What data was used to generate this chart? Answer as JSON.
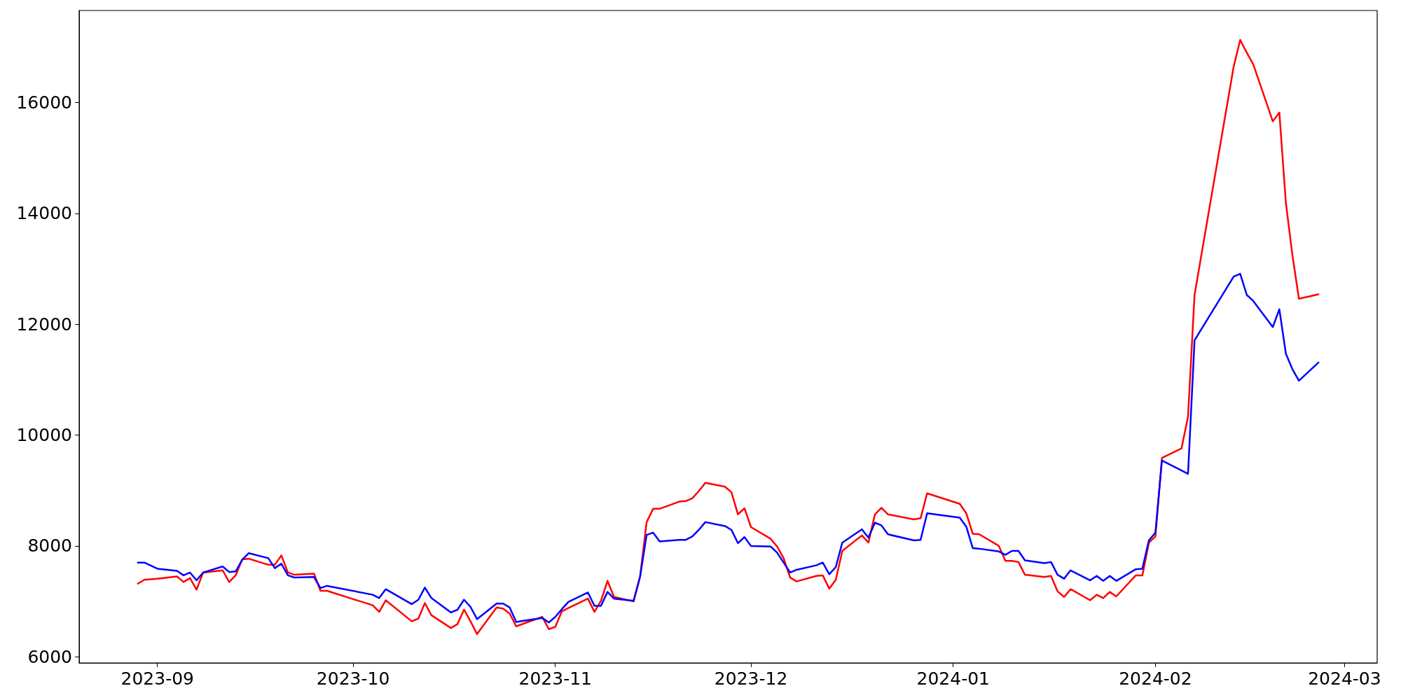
{
  "chart_data": {
    "type": "line",
    "x": [
      "2023-08-29",
      "2023-08-30",
      "2023-09-01",
      "2023-09-04",
      "2023-09-05",
      "2023-09-06",
      "2023-09-07",
      "2023-09-08",
      "2023-09-11",
      "2023-09-12",
      "2023-09-13",
      "2023-09-14",
      "2023-09-15",
      "2023-09-18",
      "2023-09-19",
      "2023-09-20",
      "2023-09-21",
      "2023-09-22",
      "2023-09-25",
      "2023-09-26",
      "2023-09-27",
      "2023-10-04",
      "2023-10-05",
      "2023-10-06",
      "2023-10-10",
      "2023-10-11",
      "2023-10-12",
      "2023-10-13",
      "2023-10-16",
      "2023-10-17",
      "2023-10-18",
      "2023-10-19",
      "2023-10-20",
      "2023-10-23",
      "2023-10-24",
      "2023-10-25",
      "2023-10-26",
      "2023-10-30",
      "2023-10-31",
      "2023-11-01",
      "2023-11-02",
      "2023-11-03",
      "2023-11-06",
      "2023-11-07",
      "2023-11-08",
      "2023-11-09",
      "2023-11-10",
      "2023-11-13",
      "2023-11-14",
      "2023-11-15",
      "2023-11-16",
      "2023-11-17",
      "2023-11-20",
      "2023-11-21",
      "2023-11-22",
      "2023-11-23",
      "2023-11-24",
      "2023-11-27",
      "2023-11-28",
      "2023-11-29",
      "2023-11-30",
      "2023-12-01",
      "2023-12-04",
      "2023-12-05",
      "2023-12-06",
      "2023-12-07",
      "2023-12-08",
      "2023-12-11",
      "2023-12-12",
      "2023-12-13",
      "2023-12-14",
      "2023-12-15",
      "2023-12-18",
      "2023-12-19",
      "2023-12-20",
      "2023-12-21",
      "2023-12-22",
      "2023-12-26",
      "2023-12-27",
      "2023-12-28",
      "2024-01-02",
      "2024-01-03",
      "2024-01-04",
      "2024-01-05",
      "2024-01-08",
      "2024-01-09",
      "2024-01-10",
      "2024-01-11",
      "2024-01-12",
      "2024-01-15",
      "2024-01-16",
      "2024-01-17",
      "2024-01-18",
      "2024-01-19",
      "2024-01-22",
      "2024-01-23",
      "2024-01-24",
      "2024-01-25",
      "2024-01-26",
      "2024-01-29",
      "2024-01-30",
      "2024-01-31",
      "2024-02-01",
      "2024-02-02",
      "2024-02-05",
      "2024-02-06",
      "2024-02-07",
      "2024-02-13",
      "2024-02-14",
      "2024-02-15",
      "2024-02-16",
      "2024-02-19",
      "2024-02-20",
      "2024-02-21",
      "2024-02-22",
      "2024-02-23",
      "2024-02-26"
    ],
    "series": [
      {
        "color": "#ff0000",
        "values": [
          7320,
          7390,
          7410,
          7450,
          7350,
          7420,
          7210,
          7520,
          7560,
          7350,
          7470,
          7760,
          7770,
          7660,
          7660,
          7830,
          7520,
          7480,
          7500,
          7190,
          7190,
          6930,
          6810,
          7020,
          6640,
          6690,
          6970,
          6750,
          6520,
          6590,
          6850,
          6640,
          6410,
          6890,
          6870,
          6780,
          6550,
          6720,
          6500,
          6540,
          6820,
          6880,
          7050,
          6810,
          7010,
          7370,
          7080,
          7000,
          7450,
          8430,
          8670,
          8670,
          8800,
          8810,
          8860,
          8990,
          9140,
          9070,
          8970,
          8570,
          8680,
          8340,
          8130,
          7990,
          7780,
          7430,
          7360,
          7460,
          7470,
          7230,
          7390,
          7910,
          8190,
          8060,
          8570,
          8690,
          8570,
          8480,
          8500,
          8950,
          8760,
          8590,
          8220,
          8210,
          8000,
          7730,
          7730,
          7710,
          7480,
          7440,
          7460,
          7180,
          7080,
          7220,
          7020,
          7120,
          7060,
          7170,
          7090,
          7470,
          7470,
          8060,
          8170,
          9590,
          9760,
          10330,
          12530,
          16650,
          17130,
          16900,
          16690,
          15660,
          15820,
          14190,
          13250,
          12460,
          12540
        ]
      },
      {
        "color": "#0000ff",
        "values": [
          7700,
          7700,
          7590,
          7550,
          7470,
          7520,
          7380,
          7520,
          7630,
          7530,
          7540,
          7750,
          7870,
          7780,
          7600,
          7680,
          7470,
          7430,
          7440,
          7240,
          7280,
          7120,
          7060,
          7220,
          6950,
          7030,
          7250,
          7060,
          6800,
          6850,
          7030,
          6900,
          6680,
          6960,
          6960,
          6890,
          6630,
          6700,
          6620,
          6720,
          6860,
          6990,
          7160,
          6920,
          6920,
          7170,
          7050,
          7010,
          7450,
          8200,
          8240,
          8080,
          8110,
          8110,
          8170,
          8290,
          8430,
          8360,
          8290,
          8050,
          8160,
          8000,
          7990,
          7880,
          7700,
          7520,
          7570,
          7650,
          7700,
          7490,
          7620,
          8060,
          8300,
          8150,
          8420,
          8370,
          8210,
          8100,
          8110,
          8590,
          8510,
          8350,
          7960,
          7950,
          7900,
          7840,
          7910,
          7910,
          7740,
          7690,
          7710,
          7480,
          7410,
          7560,
          7380,
          7460,
          7370,
          7460,
          7370,
          7580,
          7590,
          8100,
          8240,
          9540,
          9360,
          9300,
          11710,
          12860,
          12910,
          12530,
          12420,
          11950,
          12270,
          11470,
          11190,
          10980,
          11310
        ]
      }
    ],
    "xlim": [
      "2023-08-20",
      "2024-03-06"
    ],
    "xticks": [
      {
        "value": "2023-09-01",
        "label": "2023-09"
      },
      {
        "value": "2023-10-01",
        "label": "2023-10"
      },
      {
        "value": "2023-11-01",
        "label": "2023-11"
      },
      {
        "value": "2023-12-01",
        "label": "2023-12"
      },
      {
        "value": "2024-01-01",
        "label": "2024-01"
      },
      {
        "value": "2024-02-01",
        "label": "2024-02"
      },
      {
        "value": "2024-03-01",
        "label": "2024-03"
      }
    ],
    "ylim": [
      5890,
      17660
    ],
    "yticks": [
      6000,
      8000,
      10000,
      12000,
      14000,
      16000
    ],
    "grid": false
  }
}
